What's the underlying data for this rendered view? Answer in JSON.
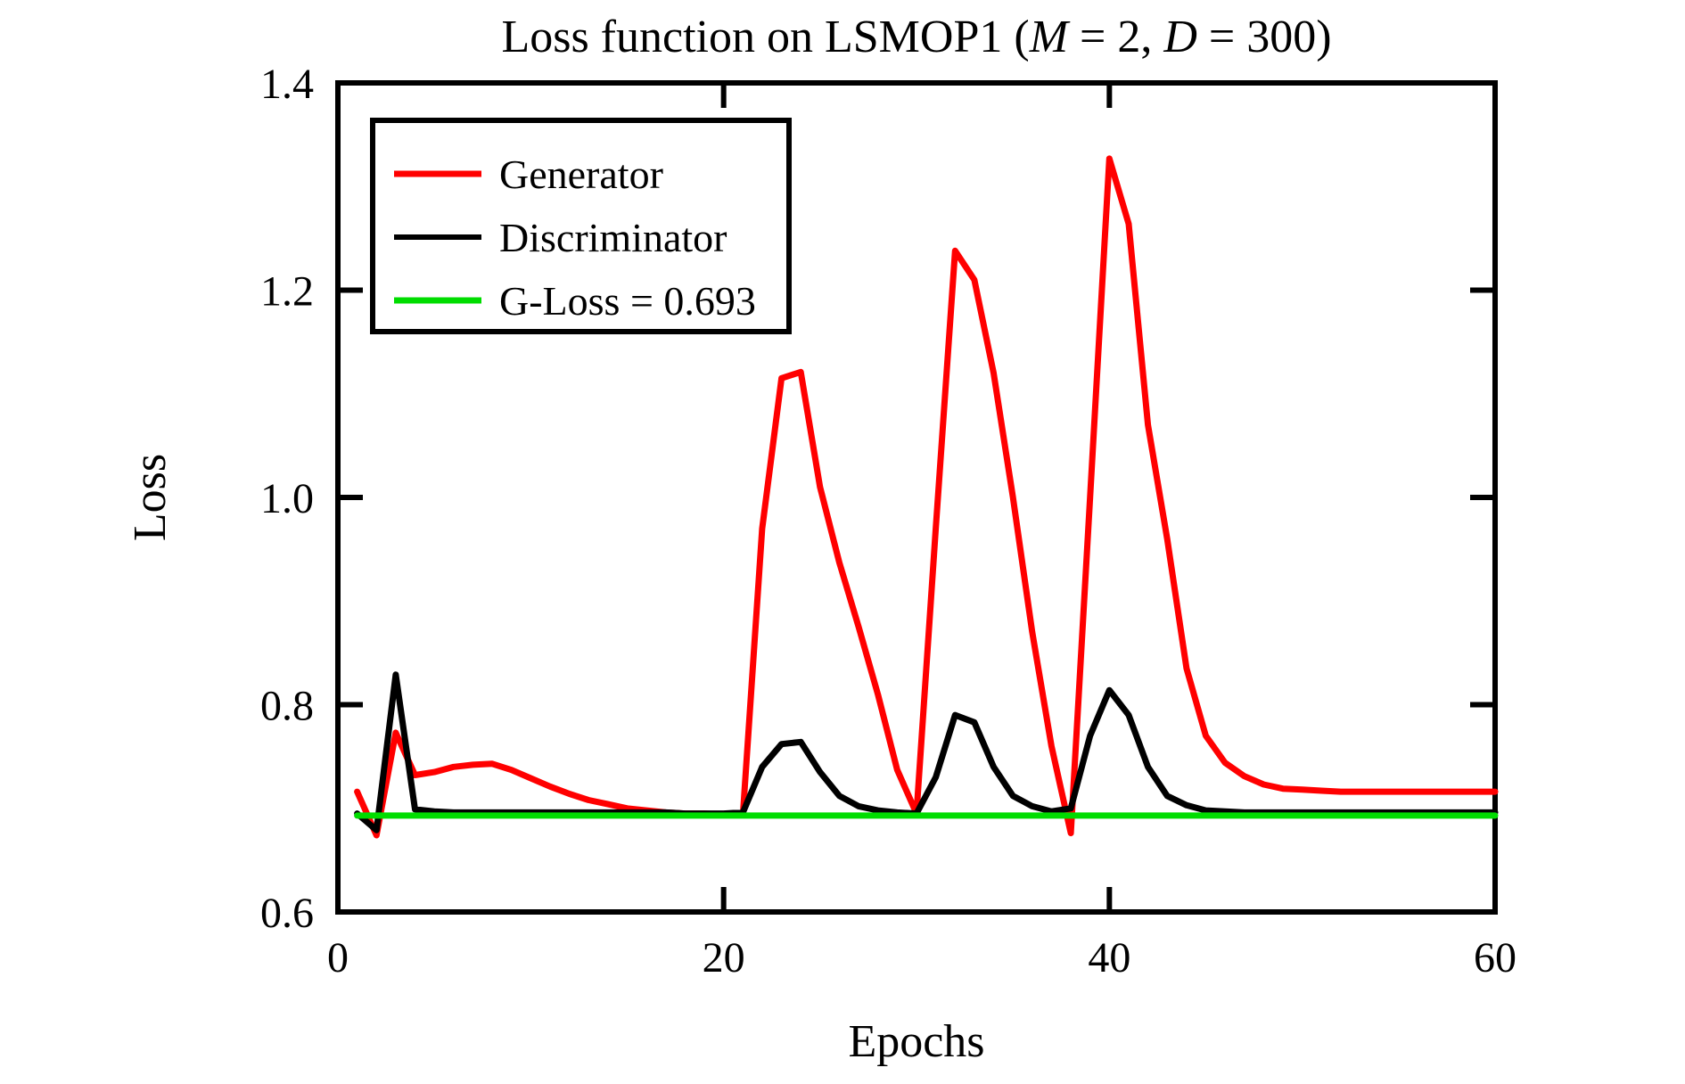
{
  "figure": {
    "title_parts": [
      {
        "text": "Loss function on LSMOP1 (",
        "italic": false
      },
      {
        "text": "M",
        "italic": true
      },
      {
        "text": " = 2, ",
        "italic": false
      },
      {
        "text": "D",
        "italic": true
      },
      {
        "text": " = 300)",
        "italic": false
      }
    ]
  },
  "chart_data": {
    "type": "line",
    "title": "Loss function on LSMOP1 (M = 2, D = 300)",
    "xlabel": "Epochs",
    "ylabel": "Loss",
    "xlim": [
      0,
      60
    ],
    "ylim": [
      0.6,
      1.4
    ],
    "x_ticks": {
      "values": [
        0,
        20,
        40,
        60
      ],
      "labels": [
        "0",
        "20",
        "40",
        "60"
      ]
    },
    "y_ticks": {
      "values": [
        0.6,
        0.8,
        1.0,
        1.2,
        1.4
      ],
      "labels": [
        "0.6",
        "0.8",
        "1.0",
        "1.2",
        "1.4"
      ]
    },
    "grid": false,
    "legend_position": "upper-left",
    "frame": "box-with-inward-ticks",
    "x": [
      1,
      2,
      3,
      4,
      5,
      6,
      7,
      8,
      9,
      10,
      11,
      12,
      13,
      14,
      15,
      16,
      17,
      18,
      19,
      20,
      21,
      22,
      23,
      24,
      25,
      26,
      27,
      28,
      29,
      30,
      31,
      32,
      33,
      34,
      35,
      36,
      37,
      38,
      39,
      40,
      41,
      42,
      43,
      44,
      45,
      46,
      47,
      48,
      49,
      50,
      51,
      52,
      53,
      54,
      55,
      56,
      57,
      58,
      59,
      60
    ],
    "series": [
      {
        "name": "Generator",
        "color": "#ff0000",
        "values": [
          0.716,
          0.674,
          0.773,
          0.732,
          0.735,
          0.74,
          0.742,
          0.743,
          0.737,
          0.729,
          0.721,
          0.714,
          0.708,
          0.704,
          0.7,
          0.698,
          0.696,
          0.695,
          0.695,
          0.694,
          0.694,
          0.97,
          1.115,
          1.121,
          1.01,
          0.937,
          0.875,
          0.81,
          0.737,
          0.695,
          0.97,
          1.238,
          1.21,
          1.12,
          1.0,
          0.87,
          0.76,
          0.676,
          1.0,
          1.327,
          1.264,
          1.07,
          0.96,
          0.835,
          0.77,
          0.744,
          0.731,
          0.723,
          0.719,
          0.718,
          0.717,
          0.716,
          0.716,
          0.716,
          0.716,
          0.716,
          0.716,
          0.716,
          0.716,
          0.716
        ]
      },
      {
        "name": "Discriminator",
        "color": "#000000",
        "values": [
          0.695,
          0.679,
          0.829,
          0.699,
          0.697,
          0.696,
          0.696,
          0.696,
          0.696,
          0.696,
          0.696,
          0.696,
          0.696,
          0.696,
          0.696,
          0.696,
          0.696,
          0.695,
          0.695,
          0.695,
          0.696,
          0.74,
          0.762,
          0.764,
          0.735,
          0.712,
          0.702,
          0.698,
          0.696,
          0.695,
          0.73,
          0.79,
          0.783,
          0.74,
          0.712,
          0.702,
          0.697,
          0.7,
          0.77,
          0.814,
          0.79,
          0.74,
          0.712,
          0.703,
          0.698,
          0.697,
          0.696,
          0.696,
          0.696,
          0.696,
          0.696,
          0.696,
          0.696,
          0.696,
          0.696,
          0.696,
          0.696,
          0.696,
          0.696,
          0.696
        ]
      },
      {
        "name": "G-Loss = 0.693",
        "color": "#00dd00",
        "constant": 0.693
      }
    ]
  }
}
